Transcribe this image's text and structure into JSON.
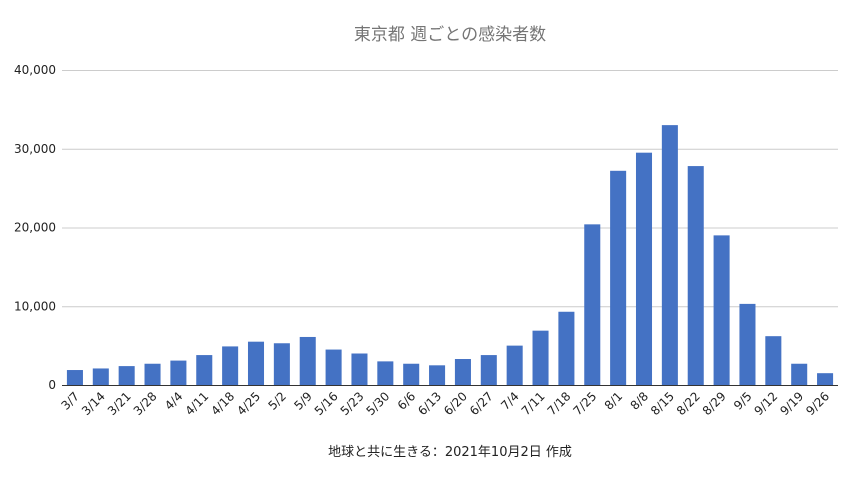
{
  "chart_data": {
    "type": "bar",
    "title": "東京都 週ごとの感染者数",
    "xlabel": "地球と共に生きる：2021年10月2日 作成",
    "ylabel": "",
    "ylim": [
      0,
      40000
    ],
    "yticks": [
      0,
      10000,
      20000,
      30000,
      40000
    ],
    "ytick_labels": [
      "0",
      "10,000",
      "20,000",
      "30,000",
      "40,000"
    ],
    "grid": true,
    "legend": "none",
    "bar_color": "#4472c4",
    "categories": [
      "3/7",
      "3/14",
      "3/21",
      "3/28",
      "4/4",
      "4/11",
      "4/18",
      "4/25",
      "5/2",
      "5/9",
      "5/16",
      "5/23",
      "5/30",
      "6/6",
      "6/13",
      "6/20",
      "6/27",
      "7/4",
      "7/11",
      "7/18",
      "7/25",
      "8/1",
      "8/8",
      "8/15",
      "8/22",
      "8/29",
      "9/5",
      "9/12",
      "9/19",
      "9/26"
    ],
    "values": [
      1900,
      2100,
      2400,
      2700,
      3100,
      3800,
      4900,
      5500,
      5300,
      6100,
      4500,
      4000,
      3000,
      2700,
      2500,
      3300,
      3800,
      5000,
      6900,
      9300,
      20400,
      27200,
      29500,
      33000,
      27800,
      19000,
      10300,
      6200,
      2700,
      1500
    ]
  }
}
